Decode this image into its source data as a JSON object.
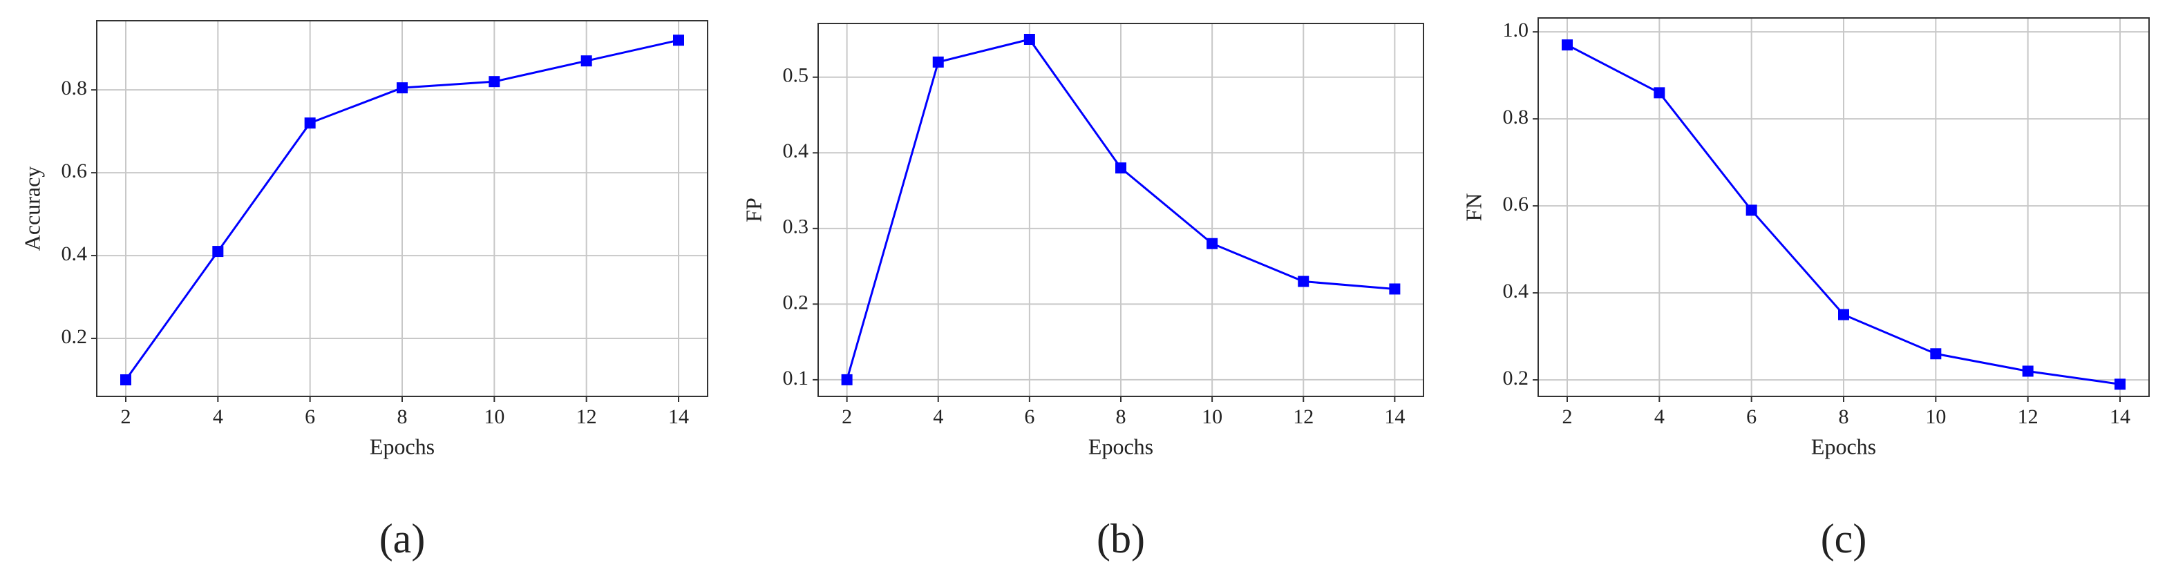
{
  "chart_data": [
    {
      "type": "line",
      "ylabel": "Accuracy",
      "xlabel": "Epochs",
      "caption": "(a)",
      "color": "#0000ff",
      "grid": true,
      "x": [
        2,
        4,
        6,
        8,
        10,
        12,
        14
      ],
      "values": [
        0.1,
        0.41,
        0.72,
        0.805,
        0.82,
        0.87,
        0.92
      ],
      "xlim": [
        1.37,
        14.63
      ],
      "xticks": [
        2,
        4,
        6,
        8,
        10,
        12,
        14
      ],
      "ylim": [
        0.06,
        0.967
      ],
      "yticks": [
        0.2,
        0.4,
        0.6,
        0.8
      ]
    },
    {
      "type": "line",
      "ylabel": "FP",
      "xlabel": "Epochs",
      "caption": "(b)",
      "color": "#0000ff",
      "grid": true,
      "x": [
        2,
        4,
        6,
        8,
        10,
        12,
        14
      ],
      "values": [
        0.1,
        0.52,
        0.55,
        0.38,
        0.28,
        0.23,
        0.22
      ],
      "xlim": [
        1.37,
        14.63
      ],
      "xticks": [
        2,
        4,
        6,
        8,
        10,
        12,
        14
      ],
      "ylim": [
        0.078,
        0.571
      ],
      "yticks": [
        0.1,
        0.2,
        0.3,
        0.4,
        0.5
      ]
    },
    {
      "type": "line",
      "ylabel": "FN",
      "xlabel": "Epochs",
      "caption": "(c)",
      "color": "#0000ff",
      "grid": true,
      "x": [
        2,
        4,
        6,
        8,
        10,
        12,
        14
      ],
      "values": [
        0.97,
        0.86,
        0.59,
        0.35,
        0.26,
        0.22,
        0.19
      ],
      "xlim": [
        1.37,
        14.63
      ],
      "xticks": [
        2,
        4,
        6,
        8,
        10,
        12,
        14
      ],
      "ylim": [
        0.162,
        1.032
      ],
      "yticks": [
        0.2,
        0.4,
        0.6,
        0.8,
        {
          "value": 1,
          "label": "1.0"
        }
      ]
    }
  ]
}
